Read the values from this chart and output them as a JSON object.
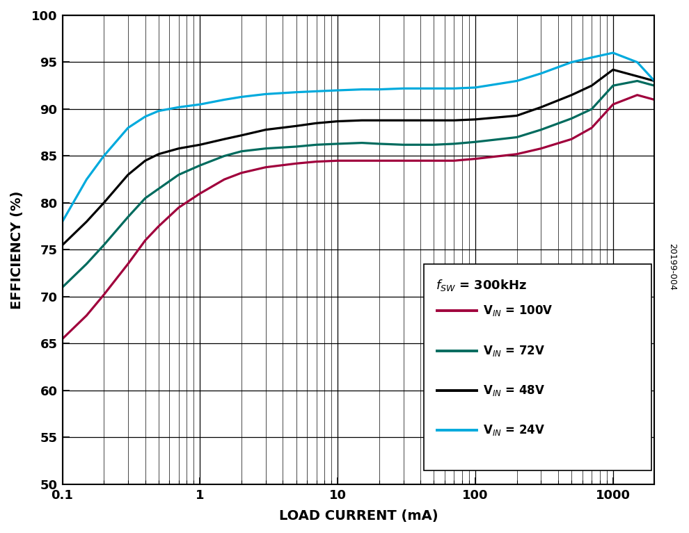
{
  "title": "",
  "xlabel": "LOAD CURRENT (mA)",
  "ylabel": "EFFICIENCY (%)",
  "xlim": [
    0.1,
    2000
  ],
  "ylim": [
    50,
    100
  ],
  "yticks": [
    50,
    55,
    60,
    65,
    70,
    75,
    80,
    85,
    90,
    95,
    100
  ],
  "annotation": "20199-004",
  "background_color": "#ffffff",
  "grid_color": "#000000",
  "series": [
    {
      "label_main": "V",
      "label_sub": "IN",
      "label_val": " = 100V",
      "color": "#A0003C",
      "x": [
        0.1,
        0.15,
        0.2,
        0.3,
        0.4,
        0.5,
        0.7,
        1.0,
        1.5,
        2.0,
        3.0,
        5.0,
        7.0,
        10,
        15,
        20,
        30,
        50,
        70,
        100,
        200,
        300,
        500,
        700,
        1000,
        1500,
        2000
      ],
      "y": [
        65.5,
        68.0,
        70.2,
        73.5,
        76.0,
        77.5,
        79.5,
        81.0,
        82.5,
        83.2,
        83.8,
        84.2,
        84.4,
        84.5,
        84.5,
        84.5,
        84.5,
        84.5,
        84.5,
        84.7,
        85.2,
        85.8,
        86.8,
        88.0,
        90.5,
        91.5,
        91.0
      ]
    },
    {
      "label_main": "V",
      "label_sub": "IN",
      "label_val": " = 72V",
      "color": "#006B5E",
      "x": [
        0.1,
        0.15,
        0.2,
        0.3,
        0.4,
        0.5,
        0.7,
        1.0,
        1.5,
        2.0,
        3.0,
        5.0,
        7.0,
        10,
        15,
        20,
        30,
        50,
        70,
        100,
        200,
        300,
        500,
        700,
        1000,
        1500,
        2000
      ],
      "y": [
        71.0,
        73.5,
        75.5,
        78.5,
        80.5,
        81.5,
        83.0,
        84.0,
        85.0,
        85.5,
        85.8,
        86.0,
        86.2,
        86.3,
        86.4,
        86.3,
        86.2,
        86.2,
        86.3,
        86.5,
        87.0,
        87.8,
        89.0,
        90.0,
        92.5,
        93.0,
        92.5
      ]
    },
    {
      "label_main": "V",
      "label_sub": "IN",
      "label_val": " = 48V",
      "color": "#000000",
      "x": [
        0.1,
        0.15,
        0.2,
        0.3,
        0.4,
        0.5,
        0.7,
        1.0,
        1.5,
        2.0,
        3.0,
        5.0,
        7.0,
        10,
        15,
        20,
        30,
        50,
        70,
        100,
        200,
        300,
        500,
        700,
        1000,
        1500,
        2000
      ],
      "y": [
        75.5,
        78.0,
        80.0,
        83.0,
        84.5,
        85.2,
        85.8,
        86.2,
        86.8,
        87.2,
        87.8,
        88.2,
        88.5,
        88.7,
        88.8,
        88.8,
        88.8,
        88.8,
        88.8,
        88.9,
        89.3,
        90.2,
        91.5,
        92.5,
        94.2,
        93.5,
        93.0
      ]
    },
    {
      "label_main": "V",
      "label_sub": "IN",
      "label_val": " = 24V",
      "color": "#00AADD",
      "x": [
        0.1,
        0.15,
        0.2,
        0.3,
        0.4,
        0.5,
        0.7,
        1.0,
        1.5,
        2.0,
        3.0,
        5.0,
        7.0,
        10,
        15,
        20,
        30,
        50,
        70,
        100,
        200,
        300,
        500,
        700,
        1000,
        1500,
        2000
      ],
      "y": [
        78.0,
        82.5,
        85.0,
        88.0,
        89.2,
        89.8,
        90.2,
        90.5,
        91.0,
        91.3,
        91.6,
        91.8,
        91.9,
        92.0,
        92.1,
        92.1,
        92.2,
        92.2,
        92.2,
        92.3,
        93.0,
        93.8,
        95.0,
        95.5,
        96.0,
        95.0,
        93.0
      ]
    }
  ],
  "legend_labels": [
    "V$_{IN}$ = 100V",
    "V$_{IN}$ = 72V",
    "V$_{IN}$ = 48V",
    "V$_{IN}$ = 24V"
  ]
}
